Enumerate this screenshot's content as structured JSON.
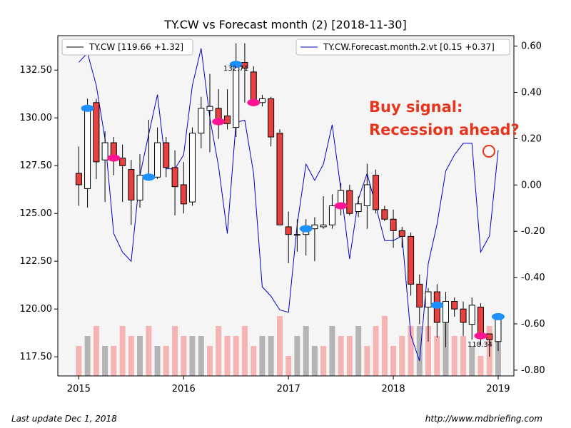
{
  "chart_data": {
    "type": "candlestick",
    "title": "TY.CW vs Forecast month (2)  [2018-11-30]",
    "x_ticks": [
      "2015",
      "2016",
      "2017",
      "2018",
      "2019"
    ],
    "y_left_ticks": [
      "117.50",
      "120.00",
      "122.50",
      "125.00",
      "127.50",
      "130.00",
      "132.50"
    ],
    "y_right_ticks": [
      "-0.80",
      "-0.60",
      "-0.40",
      "-0.20",
      "0.00",
      "0.20",
      "0.40",
      "0.60"
    ],
    "y_left_range": [
      116.5,
      134.3
    ],
    "y_right_range": [
      -0.825,
      0.645
    ],
    "x_range": [
      2014.8,
      2019.15
    ],
    "legend_left": "TY.CW [119.66 +1.32]",
    "legend_right": "TY.CW.Forecast.month.2.vt [0.15 +0.37]",
    "colors": {
      "up_body": "#ffffff",
      "down_body": "#e84040",
      "forecast_line": "#0000cc",
      "buy_marker": "#1e90ff",
      "sell_marker": "#ff1493",
      "volume_up": "#b4b4b4",
      "volume_down": "#f4b4b4",
      "annotation": "#e8341c"
    },
    "annotations": {
      "high_label": "132.71",
      "low_label": "118.34",
      "signal_line1": "Buy signal:",
      "signal_line2": "Recession ahead?"
    },
    "candles": [
      {
        "t": 2015.0,
        "o": 127.1,
        "h": 128.5,
        "l": 125.4,
        "c": 126.5
      },
      {
        "t": 2015.083,
        "o": 126.3,
        "h": 131.0,
        "l": 125.3,
        "c": 130.5
      },
      {
        "t": 2015.167,
        "o": 130.8,
        "h": 131.0,
        "l": 126.8,
        "c": 127.7
      },
      {
        "t": 2015.25,
        "o": 127.8,
        "h": 129.3,
        "l": 125.6,
        "c": 128.7
      },
      {
        "t": 2015.333,
        "o": 128.7,
        "h": 129.0,
        "l": 127.0,
        "c": 127.8
      },
      {
        "t": 2015.417,
        "o": 127.9,
        "h": 128.6,
        "l": 125.6,
        "c": 127.5
      },
      {
        "t": 2015.5,
        "o": 127.3,
        "h": 127.8,
        "l": 124.4,
        "c": 125.7
      },
      {
        "t": 2015.583,
        "o": 125.7,
        "h": 128.1,
        "l": 125.3,
        "c": 127.0
      },
      {
        "t": 2015.667,
        "o": 126.9,
        "h": 129.9,
        "l": 126.7,
        "c": 126.9
      },
      {
        "t": 2015.75,
        "o": 126.9,
        "h": 129.5,
        "l": 126.8,
        "c": 128.7
      },
      {
        "t": 2015.833,
        "o": 128.7,
        "h": 129.0,
        "l": 126.9,
        "c": 127.4
      },
      {
        "t": 2015.917,
        "o": 127.4,
        "h": 128.3,
        "l": 124.9,
        "c": 126.4
      },
      {
        "t": 2016.0,
        "o": 126.5,
        "h": 127.7,
        "l": 125.0,
        "c": 125.5
      },
      {
        "t": 2016.083,
        "o": 125.6,
        "h": 129.5,
        "l": 125.4,
        "c": 129.2
      },
      {
        "t": 2016.167,
        "o": 129.2,
        "h": 131.1,
        "l": 128.4,
        "c": 130.5
      },
      {
        "t": 2016.25,
        "o": 130.4,
        "h": 132.3,
        "l": 128.2,
        "c": 130.6
      },
      {
        "t": 2016.333,
        "o": 130.5,
        "h": 131.5,
        "l": 128.9,
        "c": 129.8
      },
      {
        "t": 2016.417,
        "o": 130.1,
        "h": 131.5,
        "l": 129.4,
        "c": 129.7
      },
      {
        "t": 2016.5,
        "o": 129.5,
        "h": 133.9,
        "l": 129.0,
        "c": 132.7
      },
      {
        "t": 2016.583,
        "o": 132.9,
        "h": 133.9,
        "l": 130.8,
        "c": 132.6
      },
      {
        "t": 2016.667,
        "o": 132.4,
        "h": 132.7,
        "l": 130.6,
        "c": 130.8
      },
      {
        "t": 2016.75,
        "o": 130.8,
        "h": 131.2,
        "l": 130.6,
        "c": 131.0
      },
      {
        "t": 2016.833,
        "o": 131.0,
        "h": 131.1,
        "l": 128.5,
        "c": 129.0
      },
      {
        "t": 2016.917,
        "o": 129.2,
        "h": 129.4,
        "l": 124.4,
        "c": 124.4
      },
      {
        "t": 2017.0,
        "o": 124.3,
        "h": 125.1,
        "l": 122.4,
        "c": 123.9
      },
      {
        "t": 2017.083,
        "o": 123.9,
        "h": 124.7,
        "l": 123.0,
        "c": 123.9
      },
      {
        "t": 2017.167,
        "o": 123.9,
        "h": 124.7,
        "l": 122.8,
        "c": 124.3
      },
      {
        "t": 2017.25,
        "o": 124.2,
        "h": 124.8,
        "l": 122.5,
        "c": 124.4
      },
      {
        "t": 2017.333,
        "o": 124.3,
        "h": 125.9,
        "l": 124.2,
        "c": 124.4
      },
      {
        "t": 2017.417,
        "o": 124.4,
        "h": 126.0,
        "l": 124.2,
        "c": 125.4
      },
      {
        "t": 2017.5,
        "o": 125.4,
        "h": 126.6,
        "l": 124.9,
        "c": 126.2
      },
      {
        "t": 2017.583,
        "o": 126.2,
        "h": 126.5,
        "l": 124.9,
        "c": 125.0
      },
      {
        "t": 2017.667,
        "o": 125.1,
        "h": 125.9,
        "l": 124.8,
        "c": 125.5
      },
      {
        "t": 2017.75,
        "o": 125.4,
        "h": 127.6,
        "l": 124.2,
        "c": 126.5
      },
      {
        "t": 2017.833,
        "o": 127.0,
        "h": 127.3,
        "l": 125.0,
        "c": 125.2
      },
      {
        "t": 2017.917,
        "o": 125.2,
        "h": 125.4,
        "l": 124.6,
        "c": 124.7
      },
      {
        "t": 2018.0,
        "o": 124.7,
        "h": 125.2,
        "l": 123.2,
        "c": 124.1
      },
      {
        "t": 2018.083,
        "o": 124.1,
        "h": 124.3,
        "l": 123.2,
        "c": 123.8
      },
      {
        "t": 2018.167,
        "o": 123.8,
        "h": 124.0,
        "l": 120.7,
        "c": 121.3
      },
      {
        "t": 2018.25,
        "o": 121.3,
        "h": 121.8,
        "l": 119.2,
        "c": 120.1
      },
      {
        "t": 2018.333,
        "o": 120.1,
        "h": 121.1,
        "l": 118.3,
        "c": 120.9
      },
      {
        "t": 2018.417,
        "o": 120.9,
        "h": 121.3,
        "l": 118.5,
        "c": 119.3
      },
      {
        "t": 2018.5,
        "o": 119.3,
        "h": 120.9,
        "l": 118.0,
        "c": 120.4
      },
      {
        "t": 2018.583,
        "o": 120.4,
        "h": 120.6,
        "l": 119.6,
        "c": 120.0
      },
      {
        "t": 2018.667,
        "o": 120.0,
        "h": 120.4,
        "l": 118.6,
        "c": 119.3
      },
      {
        "t": 2018.75,
        "o": 119.2,
        "h": 120.6,
        "l": 118.4,
        "c": 120.2
      },
      {
        "t": 2018.833,
        "o": 120.1,
        "h": 120.3,
        "l": 118.1,
        "c": 118.5
      },
      {
        "t": 2018.917,
        "o": 118.7,
        "h": 118.7,
        "l": 117.5,
        "c": 118.4
      },
      {
        "t": 2019.0,
        "o": 118.3,
        "h": 119.7,
        "l": 117.8,
        "c": 119.7
      }
    ],
    "volume": {
      "up": [
        2015.083,
        2015.25,
        2015.583,
        2015.75,
        2016.083,
        2016.167,
        2016.75,
        2016.833,
        2017.083,
        2017.167,
        2017.25,
        2017.417,
        2017.667,
        2018.25,
        2018.5,
        2018.75,
        2019.0
      ],
      "levels": [
        3,
        4,
        5,
        3,
        3,
        5,
        4,
        4,
        5,
        3,
        3,
        5,
        4,
        4,
        4,
        3,
        5,
        4,
        4,
        5,
        3,
        4,
        4,
        6,
        2,
        4,
        5,
        3,
        3,
        5,
        4,
        4,
        5,
        3,
        5,
        6,
        3,
        4,
        5,
        5,
        5,
        4,
        6,
        4,
        4,
        3,
        2,
        5,
        4
      ]
    },
    "forecast": [
      {
        "t": 2015.0,
        "v": 0.53
      },
      {
        "t": 2015.083,
        "v": 0.57
      },
      {
        "t": 2015.167,
        "v": 0.43
      },
      {
        "t": 2015.25,
        "v": 0.2
      },
      {
        "t": 2015.333,
        "v": -0.21
      },
      {
        "t": 2015.417,
        "v": -0.29
      },
      {
        "t": 2015.5,
        "v": -0.33
      },
      {
        "t": 2015.583,
        "v": 0.04
      },
      {
        "t": 2015.667,
        "v": 0.22
      },
      {
        "t": 2015.75,
        "v": 0.39
      },
      {
        "t": 2015.833,
        "v": 0.07
      },
      {
        "t": 2015.917,
        "v": 0.07
      },
      {
        "t": 2016.0,
        "v": 0.13
      },
      {
        "t": 2016.083,
        "v": 0.43
      },
      {
        "t": 2016.167,
        "v": 0.59
      },
      {
        "t": 2016.25,
        "v": 0.29
      },
      {
        "t": 2016.333,
        "v": 0.08
      },
      {
        "t": 2016.417,
        "v": -0.21
      },
      {
        "t": 2016.5,
        "v": 0.27
      },
      {
        "t": 2016.583,
        "v": 0.28
      },
      {
        "t": 2016.667,
        "v": 0.05
      },
      {
        "t": 2016.75,
        "v": -0.44
      },
      {
        "t": 2016.833,
        "v": -0.48
      },
      {
        "t": 2016.917,
        "v": -0.54
      },
      {
        "t": 2017.0,
        "v": -0.55
      },
      {
        "t": 2017.083,
        "v": -0.17
      },
      {
        "t": 2017.167,
        "v": 0.09
      },
      {
        "t": 2017.25,
        "v": 0.02
      },
      {
        "t": 2017.333,
        "v": 0.09
      },
      {
        "t": 2017.417,
        "v": 0.26
      },
      {
        "t": 2017.5,
        "v": -0.02
      },
      {
        "t": 2017.583,
        "v": -0.32
      },
      {
        "t": 2017.667,
        "v": -0.06
      },
      {
        "t": 2017.75,
        "v": 0.05
      },
      {
        "t": 2017.833,
        "v": -0.09
      },
      {
        "t": 2017.917,
        "v": -0.24
      },
      {
        "t": 2018.0,
        "v": -0.24
      },
      {
        "t": 2018.083,
        "v": -0.22
      },
      {
        "t": 2018.167,
        "v": -0.65
      },
      {
        "t": 2018.25,
        "v": -0.76
      },
      {
        "t": 2018.333,
        "v": -0.34
      },
      {
        "t": 2018.417,
        "v": -0.17
      },
      {
        "t": 2018.5,
        "v": 0.06
      },
      {
        "t": 2018.583,
        "v": 0.13
      },
      {
        "t": 2018.667,
        "v": 0.18
      },
      {
        "t": 2018.75,
        "v": 0.18
      },
      {
        "t": 2018.833,
        "v": -0.29
      },
      {
        "t": 2018.917,
        "v": -0.22
      },
      {
        "t": 2019.0,
        "v": 0.15
      }
    ],
    "markers": [
      {
        "t": 2015.083,
        "y": 130.5,
        "kind": "buy"
      },
      {
        "t": 2015.333,
        "y": 127.9,
        "kind": "sell"
      },
      {
        "t": 2015.667,
        "y": 126.9,
        "kind": "buy"
      },
      {
        "t": 2016.333,
        "y": 129.8,
        "kind": "sell"
      },
      {
        "t": 2016.5,
        "y": 132.8,
        "kind": "buy"
      },
      {
        "t": 2016.667,
        "y": 130.8,
        "kind": "sell"
      },
      {
        "t": 2017.167,
        "y": 124.2,
        "kind": "buy"
      },
      {
        "t": 2017.5,
        "y": 125.4,
        "kind": "sell"
      },
      {
        "t": 2018.417,
        "y": 120.2,
        "kind": "buy"
      },
      {
        "t": 2018.833,
        "y": 118.6,
        "kind": "sell"
      },
      {
        "t": 2019.0,
        "y": 119.6,
        "kind": "buy"
      }
    ]
  },
  "footer": {
    "left": "Last update Dec  1, 2018",
    "right": "http://www.mdbriefing.com"
  }
}
